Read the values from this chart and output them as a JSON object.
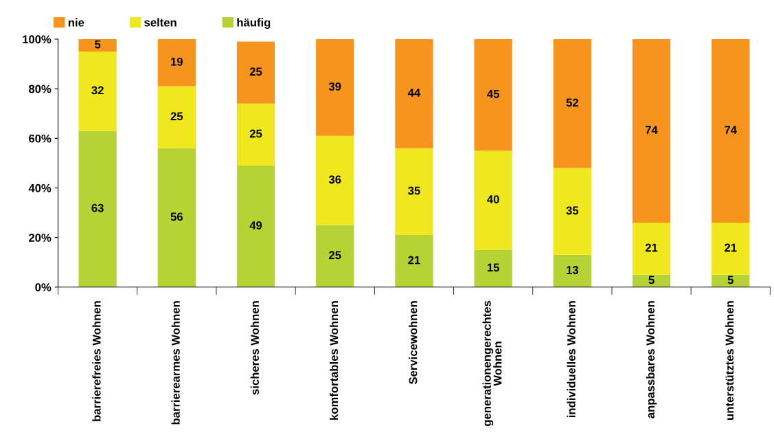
{
  "chart_data": {
    "type": "bar",
    "stacked": true,
    "categories": [
      "barrierefreies Wohnen",
      "barrierearmes Wohnen",
      "sicheres Wohnen",
      "komfortables Wohnen",
      "Servicewohnen",
      "generationengerechtes\nWohnen",
      "individuelles Wohnen",
      "anpassbares Wohnen",
      "unterstütztes Wohnen"
    ],
    "series": [
      {
        "name": "häufig",
        "color": "#b5d334",
        "values": [
          63,
          56,
          49,
          25,
          21,
          15,
          13,
          5,
          5
        ]
      },
      {
        "name": "selten",
        "color": "#f0e81e",
        "values": [
          32,
          25,
          25,
          36,
          35,
          40,
          35,
          21,
          21
        ]
      },
      {
        "name": "nie",
        "color": "#f7941d",
        "values": [
          5,
          19,
          25,
          39,
          44,
          45,
          52,
          74,
          74
        ]
      }
    ],
    "ylim": [
      0,
      100
    ],
    "yticks": [
      {
        "value": 0,
        "label": "0%"
      },
      {
        "value": 20,
        "label": "20%"
      },
      {
        "value": 40,
        "label": "40%"
      },
      {
        "value": 60,
        "label": "60%"
      },
      {
        "value": 80,
        "label": "80%"
      },
      {
        "value": 100,
        "label": "100%"
      }
    ],
    "data_labels": true,
    "grid": false,
    "legend": "top left"
  }
}
